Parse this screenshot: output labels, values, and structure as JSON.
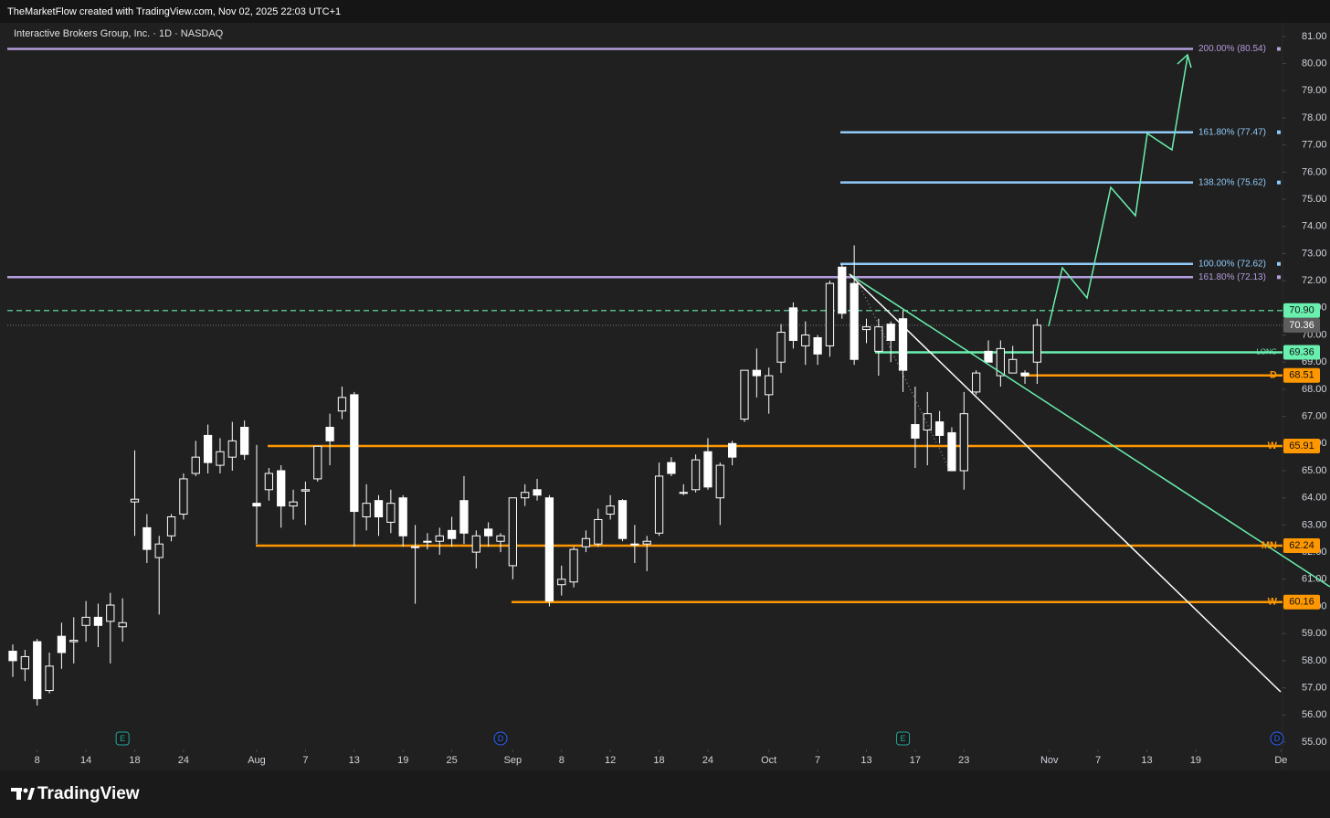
{
  "header": {
    "credit": "TheMarketFlow created with TradingView.com, Nov 02, 2025 22:03 UTC+1",
    "brand": "TradingView"
  },
  "chart_data": {
    "type": "candlestick",
    "title": "Interactive Brokers Group, Inc. · 1D · NASDAQ",
    "grid": false,
    "open": [
      58.35,
      57.7,
      58.7,
      56.9,
      58.9,
      58.7,
      59.3,
      59.6,
      59.45,
      59.25,
      63.85,
      62.9,
      61.8,
      62.6,
      63.4,
      64.9,
      66.3,
      65.2,
      65.5,
      66.6,
      63.8,
      64.3,
      65.0,
      63.7,
      64.25,
      64.7,
      66.6,
      67.2,
      67.8,
      63.3,
      63.9,
      63.1,
      64.0,
      62.2,
      62.4,
      62.4,
      62.8,
      63.9,
      62.0,
      62.85,
      62.4,
      61.5,
      64.0,
      64.3,
      64.0,
      60.8,
      60.9,
      62.2,
      62.3,
      63.4,
      63.9,
      62.3,
      62.3,
      62.7,
      65.3,
      64.2,
      64.3,
      65.7,
      64.0,
      66.0,
      66.9,
      68.7,
      67.8,
      69.0,
      71.0,
      69.6,
      69.9,
      69.6,
      72.5,
      71.9,
      70.2,
      69.4,
      70.4,
      70.6,
      66.7,
      66.5,
      66.8,
      66.4,
      65.0,
      67.9,
      69.4,
      68.5,
      68.6,
      68.6,
      69.0
    ],
    "high": [
      58.6,
      58.4,
      58.8,
      58.3,
      59.4,
      59.6,
      60.2,
      60.1,
      60.5,
      60.3,
      65.75,
      63.4,
      62.6,
      63.4,
      64.9,
      66.1,
      66.7,
      66.2,
      66.8,
      66.85,
      65.95,
      65.1,
      65.2,
      64.3,
      64.6,
      65.9,
      67.1,
      68.1,
      67.9,
      64.5,
      64.1,
      64.3,
      64.1,
      63.0,
      62.7,
      62.9,
      63.3,
      64.8,
      62.8,
      63.1,
      62.7,
      64.0,
      64.5,
      64.7,
      64.1,
      61.5,
      62.2,
      62.8,
      63.6,
      64.1,
      63.95,
      63.0,
      62.6,
      65.3,
      65.5,
      64.5,
      65.6,
      66.2,
      65.3,
      66.1,
      68.7,
      69.5,
      68.8,
      70.4,
      71.2,
      70.5,
      70.0,
      72.0,
      72.6,
      73.3,
      70.6,
      70.6,
      70.5,
      70.9,
      68.1,
      67.9,
      67.2,
      66.6,
      67.9,
      68.7,
      69.8,
      69.8,
      69.6,
      68.7,
      70.6
    ],
    "low": [
      57.4,
      57.25,
      56.35,
      56.8,
      57.7,
      57.9,
      58.7,
      58.5,
      57.9,
      58.7,
      62.6,
      61.6,
      59.7,
      62.4,
      63.2,
      64.8,
      64.9,
      64.9,
      65.0,
      65.4,
      62.3,
      63.9,
      62.9,
      63.2,
      63.0,
      64.6,
      65.2,
      66.9,
      62.2,
      62.8,
      62.6,
      62.7,
      62.2,
      60.1,
      62.1,
      61.9,
      62.2,
      62.3,
      61.4,
      62.2,
      62.0,
      61.0,
      63.7,
      63.9,
      60.0,
      60.4,
      60.7,
      62.0,
      62.2,
      63.2,
      62.4,
      61.6,
      61.3,
      62.6,
      64.8,
      64.1,
      64.2,
      64.3,
      63.0,
      65.2,
      66.8,
      67.7,
      67.1,
      68.6,
      69.5,
      68.9,
      68.9,
      69.2,
      70.6,
      68.9,
      69.7,
      68.5,
      69.0,
      67.9,
      65.1,
      65.2,
      66.0,
      65.0,
      64.3,
      67.8,
      69.0,
      68.1,
      68.6,
      68.2,
      68.2
    ],
    "close": [
      58.0,
      58.15,
      56.6,
      57.8,
      58.3,
      58.75,
      59.6,
      59.3,
      60.05,
      59.4,
      63.95,
      62.1,
      62.3,
      63.3,
      64.7,
      65.5,
      65.3,
      65.7,
      66.1,
      65.6,
      63.7,
      64.9,
      63.7,
      63.85,
      64.3,
      65.9,
      66.1,
      67.7,
      63.5,
      63.8,
      63.3,
      63.8,
      62.6,
      62.2,
      62.4,
      62.6,
      62.5,
      62.7,
      62.6,
      62.6,
      62.6,
      64.0,
      64.2,
      64.1,
      60.2,
      61.0,
      62.1,
      62.5,
      63.2,
      63.7,
      62.5,
      62.3,
      62.4,
      64.8,
      64.9,
      64.2,
      65.4,
      64.4,
      65.2,
      65.5,
      68.7,
      68.5,
      68.5,
      70.1,
      69.8,
      70.0,
      69.3,
      71.9,
      70.8,
      69.1,
      70.3,
      70.3,
      69.8,
      68.7,
      66.2,
      67.1,
      66.3,
      65.0,
      67.1,
      68.6,
      69.0,
      69.5,
      69.1,
      68.5,
      70.36
    ],
    "xlim": [
      -0.45,
      104.12
    ],
    "xticks": [
      {
        "value": 2,
        "label": "8"
      },
      {
        "value": 6,
        "label": "14"
      },
      {
        "value": 10,
        "label": "18"
      },
      {
        "value": 14,
        "label": "24"
      },
      {
        "value": 20,
        "label": "Aug"
      },
      {
        "value": 24,
        "label": "7"
      },
      {
        "value": 28,
        "label": "13"
      },
      {
        "value": 32,
        "label": "19"
      },
      {
        "value": 36,
        "label": "25"
      },
      {
        "value": 41,
        "label": "Sep"
      },
      {
        "value": 45,
        "label": "8"
      },
      {
        "value": 49,
        "label": "12"
      },
      {
        "value": 53,
        "label": "18"
      },
      {
        "value": 57,
        "label": "24"
      },
      {
        "value": 62,
        "label": "Oct"
      },
      {
        "value": 66,
        "label": "7"
      },
      {
        "value": 70,
        "label": "13"
      },
      {
        "value": 74,
        "label": "17"
      },
      {
        "value": 78,
        "label": "23"
      },
      {
        "value": 85,
        "label": "Nov"
      },
      {
        "value": 89,
        "label": "7"
      },
      {
        "value": 93,
        "label": "13"
      },
      {
        "value": 97,
        "label": "19"
      },
      {
        "value": 104,
        "label": "De"
      }
    ],
    "ylim": [
      54.73,
      81.4
    ],
    "yticks": [
      {
        "value": 55,
        "label": "55.00"
      },
      {
        "value": 56,
        "label": "56.00"
      },
      {
        "value": 57,
        "label": "57.00"
      },
      {
        "value": 58,
        "label": "58.00"
      },
      {
        "value": 59,
        "label": "59.00"
      },
      {
        "value": 60,
        "label": "60.00"
      },
      {
        "value": 61,
        "label": "61.00"
      },
      {
        "value": 62,
        "label": "62.00"
      },
      {
        "value": 63,
        "label": "63.00"
      },
      {
        "value": 64,
        "label": "64.00"
      },
      {
        "value": 65,
        "label": "65.00"
      },
      {
        "value": 66,
        "label": "66.00"
      },
      {
        "value": 67,
        "label": "67.00"
      },
      {
        "value": 68,
        "label": "68.00"
      },
      {
        "value": 69,
        "label": "69.00"
      },
      {
        "value": 70,
        "label": "70.00"
      },
      {
        "value": 71,
        "label": "71.00"
      },
      {
        "value": 72,
        "label": "72.00"
      },
      {
        "value": 73,
        "label": "73.00"
      },
      {
        "value": 74,
        "label": "74.00"
      },
      {
        "value": 75,
        "label": "75.00"
      },
      {
        "value": 76,
        "label": "76.00"
      },
      {
        "value": 77,
        "label": "77.00"
      },
      {
        "value": 78,
        "label": "78.00"
      },
      {
        "value": 79,
        "label": "79.00"
      },
      {
        "value": 80,
        "label": "80.00"
      },
      {
        "value": 81,
        "label": "81.00"
      }
    ],
    "fib_levels": [
      {
        "label": "200.00% (80.54)",
        "value": 80.54,
        "color": "#b39ddb"
      },
      {
        "label": "161.80% (77.47)",
        "value": 77.47,
        "color": "#90caf9"
      },
      {
        "label": "138.20% (75.62)",
        "value": 75.62,
        "color": "#90caf9"
      },
      {
        "label": "100.00% (72.62)",
        "value": 72.62,
        "color": "#90caf9"
      },
      {
        "label": "161.80% (72.13)",
        "value": 72.13,
        "color": "#b39ddb"
      }
    ],
    "price_levels": [
      {
        "value": 70.9,
        "label": "70.90",
        "color": "#69f0ae"
      },
      {
        "value": 70.36,
        "label": "70.36",
        "color": "#5d5d5d"
      },
      {
        "name": "LONG",
        "value": 69.36,
        "label": "69.36",
        "color": "#69f0ae"
      },
      {
        "name": "D",
        "value": 68.51,
        "label": "68.51",
        "color": "#ff9800"
      },
      {
        "name": "W",
        "value": 65.91,
        "label": "65.91",
        "color": "#ff9800"
      },
      {
        "name": "MN",
        "value": 62.24,
        "label": "62.24",
        "color": "#ff9800"
      },
      {
        "name": "W",
        "value": 60.16,
        "label": "60.16",
        "color": "#ff9800"
      }
    ],
    "events": [
      {
        "x": 9,
        "label": "E"
      },
      {
        "x": 40,
        "label": "D"
      },
      {
        "x": 73,
        "label": "E"
      },
      {
        "x": 104,
        "label": "D"
      }
    ]
  }
}
